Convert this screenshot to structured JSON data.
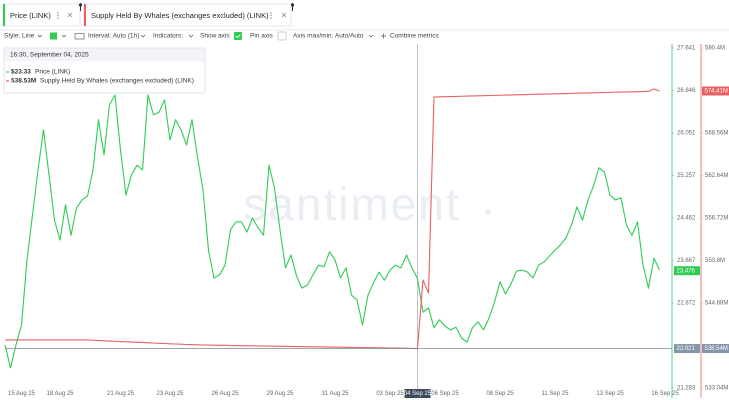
{
  "chart_data": {
    "type": "line",
    "watermark": "santiment",
    "controls": {
      "style": "Style: Line",
      "interval": "Interval: Auto (1h)",
      "indicators": "Indicators:",
      "show_axis": "Show axis",
      "pin_axis": "Pin axis",
      "axis_minmax": "Axis max/min: Auto/Auto",
      "combine": "Combine metrics"
    },
    "tooltip": {
      "title": "16:30, September 04, 2025",
      "value_labels": [
        "$23.33",
        "538.53M"
      ]
    },
    "categories": [
      null,
      null,
      null,
      "15 Aug 25",
      null,
      null,
      null,
      null,
      null,
      null,
      "18 Aug 25",
      null,
      null,
      null,
      null,
      null,
      null,
      null,
      null,
      null,
      null,
      "21 Aug 25",
      null,
      null,
      null,
      null,
      null,
      null,
      null,
      null,
      "23 Aug 25",
      null,
      null,
      null,
      null,
      null,
      null,
      null,
      null,
      null,
      "26 Aug 25",
      null,
      null,
      null,
      null,
      null,
      null,
      null,
      null,
      null,
      "29 Aug 25",
      null,
      null,
      null,
      null,
      null,
      null,
      null,
      null,
      null,
      "31 Aug 25",
      null,
      null,
      null,
      null,
      null,
      null,
      null,
      null,
      null,
      "03 Sep 25",
      null,
      null,
      null,
      null,
      "04 Sep 25",
      null,
      null,
      null,
      null,
      "06 Sep 25",
      null,
      null,
      null,
      null,
      null,
      null,
      null,
      null,
      null,
      "08 Sep 25",
      null,
      null,
      null,
      null,
      null,
      null,
      null,
      null,
      null,
      "11 Sep 25",
      null,
      null,
      null,
      null,
      null,
      null,
      null,
      null,
      null,
      "13 Sep 25",
      null,
      null,
      null,
      null,
      null,
      null,
      null,
      null,
      null,
      "16 Sep 25"
    ],
    "series": [
      {
        "name": "Price (LINK)",
        "color": "#2ecc52",
        "axis": "y",
        "values": [
          22.09,
          21.66,
          22.09,
          22.46,
          23.68,
          24.52,
          25.36,
          26.11,
          25.27,
          24.42,
          24.05,
          24.71,
          24.14,
          24.65,
          24.8,
          24.87,
          25.36,
          26.3,
          25.64,
          26.58,
          26.76,
          25.73,
          24.89,
          25.27,
          25.45,
          25.36,
          26.76,
          26.39,
          26.44,
          26.67,
          25.92,
          26.3,
          26.11,
          25.83,
          26.3,
          25.6,
          24.99,
          23.86,
          23.34,
          23.4,
          23.58,
          24.24,
          24.39,
          24.39,
          24.2,
          24.46,
          24.28,
          24.14,
          25.45,
          25.02,
          24.24,
          23.53,
          23.77,
          23.38,
          23.15,
          23.21,
          23.4,
          23.58,
          23.55,
          23.83,
          23.68,
          23.34,
          23.53,
          23.02,
          22.93,
          22.46,
          23.02,
          23.25,
          23.45,
          23.3,
          23.49,
          23.58,
          23.53,
          23.77,
          23.53,
          23.33,
          22.7,
          22.78,
          22.41,
          22.56,
          22.44,
          22.37,
          22.42,
          22.22,
          22.14,
          22.41,
          22.52,
          22.37,
          22.59,
          22.89,
          23.27,
          23.04,
          23.23,
          23.47,
          23.49,
          23.45,
          23.34,
          23.58,
          23.64,
          23.75,
          23.86,
          23.96,
          24.09,
          24.33,
          24.67,
          24.42,
          24.8,
          25.06,
          25.4,
          25.32,
          24.89,
          24.8,
          24.84,
          24.33,
          24.14,
          24.39,
          23.58,
          23.15,
          23.71,
          23.49,
          null
        ]
      },
      {
        "name": "Supply Held By Whales (exchanges excluded) (LINK)",
        "color": "#e8605f",
        "axis": "y2",
        "values": [
          539.73,
          539.73,
          539.73,
          539.73,
          539.73,
          539.73,
          539.73,
          539.73,
          539.73,
          539.73,
          539.73,
          539.73,
          539.73,
          539.73,
          539.73,
          539.73,
          539.69,
          539.66,
          539.62,
          539.58,
          539.55,
          539.51,
          539.48,
          539.45,
          539.41,
          539.38,
          539.34,
          539.31,
          539.27,
          539.24,
          539.2,
          539.17,
          539.14,
          539.1,
          539.07,
          539.05,
          539.03,
          539.02,
          539.0,
          538.99,
          538.98,
          538.96,
          538.95,
          538.94,
          538.92,
          538.91,
          538.9,
          538.89,
          538.88,
          538.86,
          538.85,
          538.84,
          538.83,
          538.81,
          538.8,
          538.79,
          538.78,
          538.77,
          538.76,
          538.74,
          538.73,
          538.72,
          538.71,
          538.7,
          538.68,
          538.67,
          538.66,
          538.65,
          538.63,
          538.62,
          538.61,
          538.6,
          538.58,
          538.57,
          538.55,
          538.53,
          548.08,
          546.27,
          573.57,
          573.6,
          573.62,
          573.64,
          573.66,
          573.68,
          573.7,
          573.72,
          573.74,
          573.76,
          573.78,
          573.8,
          573.82,
          573.84,
          573.86,
          573.88,
          573.9,
          573.92,
          573.94,
          573.96,
          573.98,
          574.0,
          574.02,
          574.04,
          574.06,
          574.08,
          574.1,
          574.12,
          574.14,
          574.16,
          574.18,
          574.2,
          574.22,
          574.24,
          574.26,
          574.28,
          574.3,
          574.32,
          574.34,
          574.36,
          574.69,
          574.41,
          null
        ]
      }
    ],
    "ylim": [
      21.283,
      27.641
    ],
    "yticks": [
      27.641,
      26.846,
      26.051,
      25.257,
      24.462,
      23.667,
      22.872,
      21.283
    ],
    "y2lim": [
      533.04,
      580.4
    ],
    "y2ticks": [
      {
        "value": 580.4,
        "label": "580.4M"
      },
      {
        "value": 568.56,
        "label": "568.56M"
      },
      {
        "value": 562.64,
        "label": "562.64M"
      },
      {
        "value": 556.72,
        "label": "556.72M"
      },
      {
        "value": 550.8,
        "label": "550.8M"
      },
      {
        "value": 544.88,
        "label": "544.88M"
      },
      {
        "value": 533.04,
        "label": "533.04M"
      }
    ],
    "annotations": [
      {
        "value": 23.476,
        "label": "23.476",
        "axis": "y",
        "color": "#2ecc52"
      },
      {
        "value": 574.41,
        "label": "574.41M",
        "axis": "y2",
        "color": "#e8605f"
      },
      {
        "value": 22.021,
        "label": "22.021",
        "axis": "y",
        "color": "#8795a8"
      },
      {
        "value": 538.54,
        "label": "538.54M",
        "axis": "y2",
        "color": "#8795a8"
      }
    ]
  }
}
